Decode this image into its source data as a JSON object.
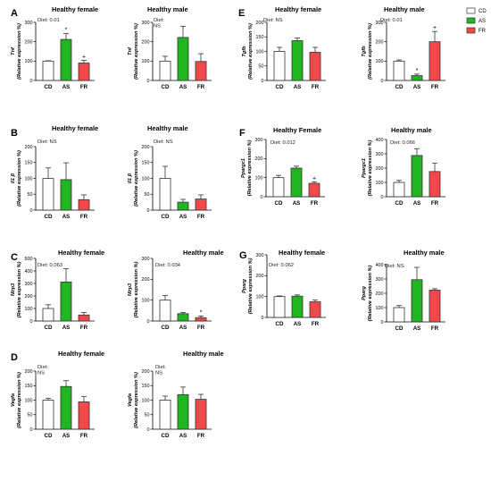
{
  "categories": [
    "CD",
    "AS",
    "FR"
  ],
  "colors": {
    "CD": "#ffffff",
    "AS": "#22b522",
    "FR": "#f2484c"
  },
  "legend": {
    "items": [
      "CD",
      "AS",
      "FR"
    ]
  },
  "chart_data": [
    {
      "type": "bar",
      "panel": "A",
      "title": "Healthy female",
      "diet": "Diet: 0.01",
      "gene": "Tnf",
      "ylabel2": "(Relative expression  %)",
      "ylim": [
        0,
        300
      ],
      "yticks": [
        "0",
        "100",
        "200",
        "300"
      ],
      "values": [
        100,
        212,
        90
      ],
      "errors": [
        2,
        30,
        14
      ],
      "annotations": [
        "",
        "*",
        "+"
      ]
    },
    {
      "type": "bar",
      "panel": "",
      "title": "Healthy male",
      "diet": "Diet:\nNS",
      "gene": "Tnf",
      "ylabel2": "(Relative expression  %)",
      "ylim": [
        0,
        300
      ],
      "yticks": [
        "0",
        "100",
        "200",
        "300"
      ],
      "values": [
        100,
        222,
        98
      ],
      "errors": [
        25,
        58,
        40
      ],
      "annotations": [
        "",
        "",
        ""
      ]
    },
    {
      "type": "bar",
      "panel": "B",
      "title": "Healthy female",
      "diet": "Diet: NS",
      "gene": "Il1 β",
      "ylabel2": "(Relative expression  %)",
      "ylim": [
        0,
        200
      ],
      "yticks": [
        "0",
        "50",
        "100",
        "150",
        "200"
      ],
      "values": [
        100,
        96,
        33
      ],
      "errors": [
        33,
        53,
        15
      ],
      "annotations": [
        "",
        "",
        ""
      ]
    },
    {
      "type": "bar",
      "panel": "",
      "title": "Healthy male",
      "diet": "Diet: NS",
      "gene": "Il1 β",
      "ylabel2": "(Relative expression  %)",
      "ylim": [
        0,
        200
      ],
      "yticks": [
        "0",
        "50",
        "100",
        "150",
        "200"
      ],
      "values": [
        100,
        25,
        35
      ],
      "errors": [
        38,
        9,
        13
      ],
      "annotations": [
        "",
        "",
        ""
      ]
    },
    {
      "type": "bar",
      "panel": "C",
      "title": "Healthy female",
      "diet": "Diet: 0.063",
      "gene": "Nlrp3",
      "ylabel2": "(Relative expression  %)",
      "ylim": [
        0,
        500
      ],
      "yticks": [
        "0",
        "100",
        "200",
        "300",
        "400",
        "500"
      ],
      "values": [
        100,
        312,
        48
      ],
      "errors": [
        30,
        105,
        20
      ],
      "annotations": [
        "",
        "",
        ""
      ]
    },
    {
      "type": "bar",
      "panel": "",
      "title": "Healthy male",
      "diet": "Diet: 0.034",
      "gene": "Nlrp3",
      "ylabel2": "(Relative expression  %)",
      "ylim": [
        0,
        300
      ],
      "yticks": [
        "0",
        "100",
        "200",
        "300"
      ],
      "values": [
        100,
        35,
        16
      ],
      "errors": [
        22,
        6,
        8
      ],
      "annotations": [
        "",
        "",
        "*"
      ]
    },
    {
      "type": "bar",
      "panel": "D",
      "title": "Healthy female",
      "diet": "Diet:\nNS",
      "gene": "Vegfa",
      "ylabel2": "(Relative expression  %)",
      "ylim": [
        0,
        200
      ],
      "yticks": [
        "0",
        "50",
        "100",
        "150",
        "200"
      ],
      "values": [
        100,
        147,
        94
      ],
      "errors": [
        6,
        20,
        18
      ],
      "annotations": [
        "",
        "",
        ""
      ]
    },
    {
      "type": "bar",
      "panel": "",
      "title": "Healthy male",
      "diet": "Diet:\nNS",
      "gene": "Vegfa",
      "ylabel2": "(Relative expression  %)",
      "ylim": [
        0,
        200
      ],
      "yticks": [
        "0",
        "50",
        "100",
        "150",
        "200"
      ],
      "values": [
        100,
        119,
        103
      ],
      "errors": [
        14,
        26,
        17
      ],
      "annotations": [
        "",
        "",
        ""
      ]
    },
    {
      "type": "bar",
      "panel": "E",
      "title": "Healthy female",
      "diet": "Diet: NS",
      "gene": "Tgfb",
      "ylabel2": "(Relative expression  %)",
      "ylim": [
        0,
        200
      ],
      "yticks": [
        "0",
        "50",
        "100",
        "150",
        "200"
      ],
      "values": [
        100,
        137,
        97
      ],
      "errors": [
        14,
        9,
        17
      ],
      "annotations": [
        "",
        "",
        ""
      ]
    },
    {
      "type": "bar",
      "panel": "",
      "title": "Healthy male",
      "diet": "Diet: 0.01",
      "gene": "Tgfb",
      "ylabel2": "(Relative expression  %)",
      "ylim": [
        0,
        300
      ],
      "yticks": [
        "0",
        "100",
        "200",
        "300"
      ],
      "values": [
        100,
        25,
        200
      ],
      "errors": [
        6,
        8,
        53
      ],
      "annotations": [
        "",
        "*",
        "+"
      ]
    },
    {
      "type": "bar",
      "panel": "F",
      "title": "Healthy Female",
      "diet": "Diet: 0.012",
      "gene": "Ppargc1",
      "ylabel2": "(Relative expression  %)",
      "ylim": [
        0,
        300
      ],
      "yticks": [
        "0",
        "100",
        "200",
        "300"
      ],
      "values": [
        100,
        150,
        70
      ],
      "errors": [
        12,
        10,
        8
      ],
      "annotations": [
        "",
        "",
        "+"
      ]
    },
    {
      "type": "bar",
      "panel": "",
      "title": "Healthy male",
      "diet": "Diet: 0.066",
      "gene": "Ppargc1",
      "ylabel2": "(Relative expression %)",
      "ylim": [
        0,
        400
      ],
      "yticks": [
        "0",
        "100",
        "200",
        "300",
        "400"
      ],
      "values": [
        100,
        288,
        176
      ],
      "errors": [
        14,
        48,
        58
      ],
      "annotations": [
        "",
        "",
        ""
      ]
    },
    {
      "type": "bar",
      "panel": "G",
      "title": "Healthy female",
      "diet": "Diet: 0.062",
      "gene": "Pparg",
      "ylabel2": "(Relative expression  %)",
      "ylim": [
        0,
        300
      ],
      "yticks": [
        "0",
        "100",
        "200",
        "300"
      ],
      "values": [
        100,
        102,
        75
      ],
      "errors": [
        3,
        6,
        8
      ],
      "annotations": [
        "",
        "",
        ""
      ]
    },
    {
      "type": "bar",
      "panel": "",
      "title": "Healthy male",
      "diet": "Diet: NS",
      "gene": "Pparg",
      "ylabel2": "(Relative expression %)",
      "ylim": [
        0,
        400
      ],
      "yticks": [
        "0",
        "100",
        "200",
        "300",
        "400"
      ],
      "values": [
        100,
        295,
        222
      ],
      "errors": [
        14,
        86,
        10
      ],
      "annotations": [
        "",
        "",
        ""
      ]
    }
  ]
}
